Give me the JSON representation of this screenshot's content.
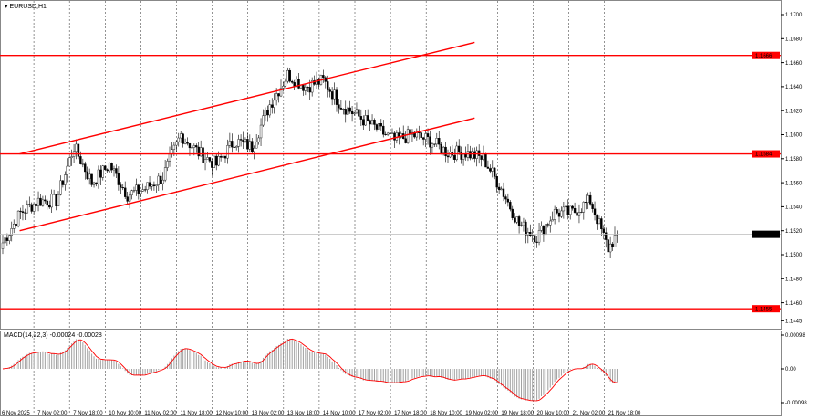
{
  "window": {
    "symbol_title": "EURUSD,H1"
  },
  "chart_data": {
    "type": "candlestick",
    "symbol": "EURUSD",
    "timeframe": "H1",
    "price_ticks": [
      "1.1700",
      "1.1680",
      "1.1660",
      "1.1640",
      "1.1620",
      "1.1600",
      "1.1580",
      "1.1560",
      "1.1540",
      "1.1520",
      "1.1500",
      "1.1480",
      "1.1460",
      "1.1445"
    ],
    "price_range": [
      1.1445,
      1.17
    ],
    "time_labels": [
      "6 Nov 2025",
      "7 Nov 02:00",
      "7 Nov 18:00",
      "10 Nov 10:00",
      "11 Nov 02:00",
      "11 Nov 18:00",
      "12 Nov 10:00",
      "13 Nov 02:00",
      "13 Nov 18:00",
      "14 Nov 10:00",
      "17 Nov 02:00",
      "17 Nov 18:00",
      "18 Nov 10:00",
      "19 Nov 02:00",
      "19 Nov 18:00",
      "20 Nov 10:00",
      "21 Nov 02:00",
      "21 Nov 18:00"
    ],
    "closes_8h": [
      [
        "6 Nov 10:00",
        1.151
      ],
      [
        "6 Nov 18:00",
        1.1535
      ],
      [
        "7 Nov 02:00",
        1.1545
      ],
      [
        "7 Nov 10:00",
        1.1545
      ],
      [
        "7 Nov 18:00",
        1.159
      ],
      [
        "10 Nov 02:00",
        1.156
      ],
      [
        "10 Nov 10:00",
        1.1575
      ],
      [
        "10 Nov 18:00",
        1.155
      ],
      [
        "11 Nov 02:00",
        1.1555
      ],
      [
        "11 Nov 10:00",
        1.1565
      ],
      [
        "11 Nov 18:00",
        1.16
      ],
      [
        "12 Nov 02:00",
        1.1585
      ],
      [
        "12 Nov 10:00",
        1.1575
      ],
      [
        "12 Nov 18:00",
        1.1595
      ],
      [
        "13 Nov 02:00",
        1.159
      ],
      [
        "13 Nov 10:00",
        1.1625
      ],
      [
        "13 Nov 18:00",
        1.165
      ],
      [
        "14 Nov 02:00",
        1.164
      ],
      [
        "14 Nov 10:00",
        1.1645
      ],
      [
        "14 Nov 18:00",
        1.1625
      ],
      [
        "17 Nov 02:00",
        1.1615
      ],
      [
        "17 Nov 10:00",
        1.1605
      ],
      [
        "17 Nov 18:00",
        1.1595
      ],
      [
        "18 Nov 02:00",
        1.16
      ],
      [
        "18 Nov 10:00",
        1.1595
      ],
      [
        "18 Nov 18:00",
        1.1585
      ],
      [
        "19 Nov 02:00",
        1.1585
      ],
      [
        "19 Nov 10:00",
        1.158
      ],
      [
        "19 Nov 18:00",
        1.1555
      ],
      [
        "20 Nov 02:00",
        1.1525
      ],
      [
        "20 Nov 10:00",
        1.1515
      ],
      [
        "20 Nov 18:00",
        1.1535
      ],
      [
        "21 Nov 02:00",
        1.1535
      ],
      [
        "21 Nov 10:00",
        1.1545
      ],
      [
        "21 Nov 18:00",
        1.1505
      ],
      [
        "21 Nov 22:00",
        1.1517
      ]
    ],
    "current_price": "1.1517",
    "horizontal_levels": [
      {
        "label": "1.1666",
        "price": 1.1666
      },
      {
        "label": "1.1584",
        "price": 1.1584
      },
      {
        "label": "1.1455",
        "price": 1.1455
      }
    ],
    "channel_lines": [
      {
        "from": [
          "6 Nov 18:00",
          1.1584
        ],
        "to": [
          "19 Nov 02:00",
          1.1675
        ]
      },
      {
        "from": [
          "6 Nov 18:00",
          1.152
        ],
        "to": [
          "19 Nov 02:00",
          1.1612
        ]
      }
    ],
    "indicator": {
      "label": "MACD(14,22,3) -0.00024 -0.00028",
      "ticks": [
        "0.00098",
        "0.00",
        "-0.00098"
      ],
      "range": [
        -0.00098,
        0.00098
      ]
    },
    "colors": {
      "levels": "#ff0000",
      "signal": "#ff0000",
      "histogram": "#a0a0a0",
      "current_price_bg": "#000000"
    },
    "grid": "vertical dashed"
  }
}
